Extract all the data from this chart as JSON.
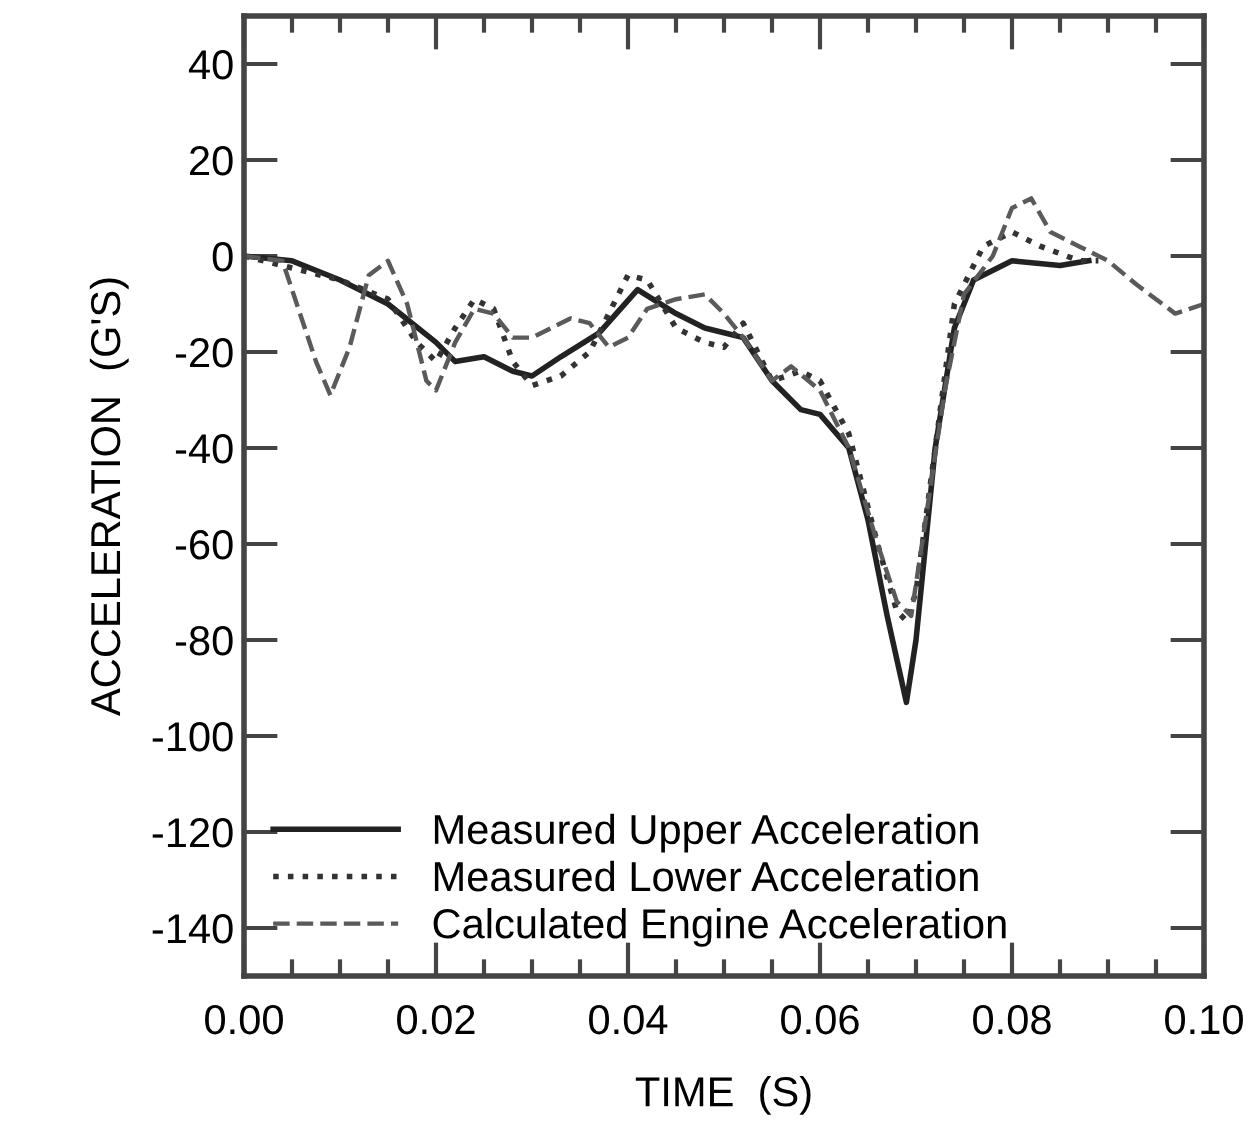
{
  "chart_data": {
    "type": "line",
    "xlabel": "TIME  (S)",
    "ylabel": "ACCELERATION  (G'S)",
    "xlim": [
      0,
      0.1
    ],
    "ylim": [
      -150,
      50
    ],
    "xticks": [
      {
        "value": 0,
        "label": "0.00"
      },
      {
        "value": 0.02,
        "label": "0.02"
      },
      {
        "value": 0.04,
        "label": "0.04"
      },
      {
        "value": 0.06,
        "label": "0.06"
      },
      {
        "value": 0.08,
        "label": "0.08"
      },
      {
        "value": 0.1,
        "label": "0.10"
      }
    ],
    "yticks": [
      -140,
      -120,
      -100,
      -80,
      -60,
      -40,
      -20,
      0,
      20,
      40
    ],
    "legend": "bottom left",
    "grid": false,
    "series": [
      {
        "name": "Measured Upper Acceleration",
        "color": "#222222",
        "line_style": "solid",
        "x": [
          0,
          0.005,
          0.01,
          0.015,
          0.02,
          0.022,
          0.025,
          0.028,
          0.03,
          0.033,
          0.037,
          0.041,
          0.045,
          0.048,
          0.05,
          0.052,
          0.055,
          0.058,
          0.06,
          0.063,
          0.065,
          0.067,
          0.069,
          0.07,
          0.071,
          0.072,
          0.074,
          0.076,
          0.08,
          0.085,
          0.088
        ],
        "values": [
          0,
          -1,
          -5,
          -10,
          -18,
          -22,
          -21,
          -24,
          -25,
          -21,
          -16,
          -7,
          -12,
          -15,
          -16,
          -17,
          -26,
          -32,
          -33,
          -40,
          -55,
          -75,
          -93,
          -80,
          -60,
          -40,
          -15,
          -5,
          -1,
          -2,
          -1
        ]
      },
      {
        "name": "Measured Lower Acceleration",
        "color": "#333333",
        "line_style": "dotted",
        "x": [
          0,
          0.01,
          0.015,
          0.018,
          0.02,
          0.022,
          0.024,
          0.026,
          0.028,
          0.03,
          0.033,
          0.036,
          0.038,
          0.04,
          0.042,
          0.045,
          0.048,
          0.05,
          0.052,
          0.055,
          0.058,
          0.06,
          0.063,
          0.066,
          0.068,
          0.069,
          0.07,
          0.072,
          0.074,
          0.077,
          0.08,
          0.083,
          0.087,
          0.089
        ],
        "values": [
          0,
          -5,
          -9,
          -18,
          -22,
          -15,
          -9,
          -11,
          -22,
          -27,
          -25,
          -20,
          -12,
          -4,
          -5,
          -15,
          -18,
          -19,
          -14,
          -26,
          -24,
          -26,
          -37,
          -60,
          -74,
          -76,
          -70,
          -40,
          -10,
          2,
          5,
          2,
          -1,
          -1
        ]
      },
      {
        "name": "Calculated Engine Acceleration",
        "color": "#5a5a5a",
        "line_style": "dashed",
        "x": [
          0,
          0.004,
          0.0075,
          0.009,
          0.011,
          0.013,
          0.015,
          0.017,
          0.019,
          0.02,
          0.022,
          0.024,
          0.026,
          0.028,
          0.03,
          0.034,
          0.036,
          0.038,
          0.04,
          0.042,
          0.045,
          0.048,
          0.05,
          0.052,
          0.055,
          0.057,
          0.06,
          0.063,
          0.066,
          0.068,
          0.0695,
          0.071,
          0.073,
          0.075,
          0.078,
          0.08,
          0.082,
          0.084,
          0.087,
          0.09,
          0.093,
          0.097,
          0.1
        ],
        "values": [
          0,
          -1,
          -22,
          -29,
          -19,
          -4,
          -1,
          -10,
          -26,
          -28,
          -18,
          -11,
          -12,
          -17,
          -17,
          -13,
          -14,
          -19,
          -17,
          -11,
          -9,
          -8,
          -12,
          -17,
          -26,
          -23,
          -28,
          -40,
          -60,
          -72,
          -75,
          -55,
          -28,
          -8,
          0,
          10,
          12,
          5,
          2,
          -1,
          -6,
          -12,
          -10
        ]
      }
    ]
  }
}
